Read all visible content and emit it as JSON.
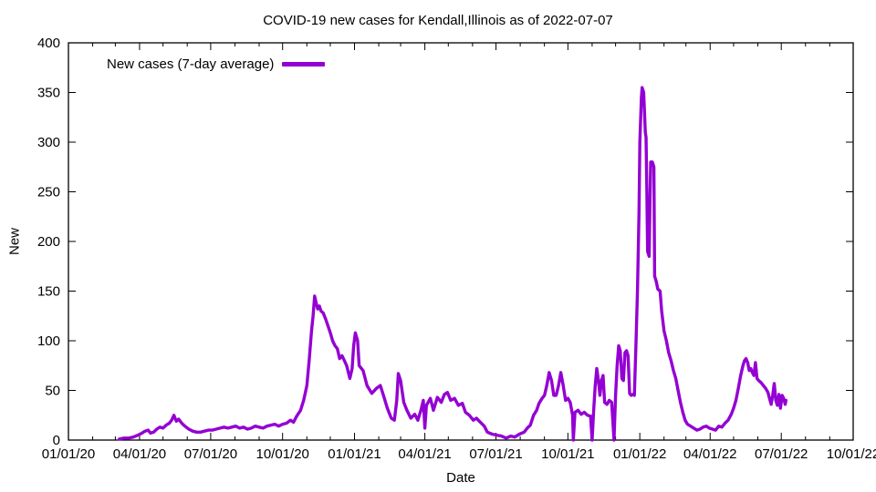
{
  "page": {
    "background": "#ffffff",
    "axis_color": "#000000"
  },
  "chart_data": {
    "type": "line",
    "title": "COVID-19 new cases for Kendall,Illinois as of 2022-07-07",
    "xlabel": "Date",
    "ylabel": "New",
    "grid": false,
    "legend_position": "top-left-inside",
    "ylim": [
      0,
      400
    ],
    "y_ticks": [
      0,
      50,
      100,
      150,
      200,
      250,
      300,
      350,
      400
    ],
    "x_range": [
      "2020-01-01",
      "2022-10-01"
    ],
    "x_minor_tick_unit": "month",
    "x_ticks": [
      {
        "date": "2020-01-01",
        "label": "01/01/20"
      },
      {
        "date": "2020-04-01",
        "label": "04/01/20"
      },
      {
        "date": "2020-07-01",
        "label": "07/01/20"
      },
      {
        "date": "2020-10-01",
        "label": "10/01/20"
      },
      {
        "date": "2021-01-01",
        "label": "01/01/21"
      },
      {
        "date": "2021-04-01",
        "label": "04/01/21"
      },
      {
        "date": "2021-07-01",
        "label": "07/01/21"
      },
      {
        "date": "2021-10-01",
        "label": "10/01/21"
      },
      {
        "date": "2022-01-01",
        "label": "01/01/22"
      },
      {
        "date": "2022-04-01",
        "label": "04/01/22"
      },
      {
        "date": "2022-07-01",
        "label": "07/01/22"
      },
      {
        "date": "2022-10-01",
        "label": "10/01/22"
      }
    ],
    "series": [
      {
        "name": "New cases (7-day average)",
        "color": "#9400d3",
        "points": [
          [
            "2020-03-06",
            1
          ],
          [
            "2020-03-12",
            2
          ],
          [
            "2020-03-18",
            2
          ],
          [
            "2020-03-24",
            3
          ],
          [
            "2020-03-30",
            5
          ],
          [
            "2020-04-04",
            7
          ],
          [
            "2020-04-08",
            9
          ],
          [
            "2020-04-12",
            10
          ],
          [
            "2020-04-15",
            7
          ],
          [
            "2020-04-19",
            8
          ],
          [
            "2020-04-23",
            11
          ],
          [
            "2020-04-27",
            13
          ],
          [
            "2020-05-01",
            12
          ],
          [
            "2020-05-05",
            15
          ],
          [
            "2020-05-09",
            17
          ],
          [
            "2020-05-12",
            20
          ],
          [
            "2020-05-15",
            25
          ],
          [
            "2020-05-18",
            19
          ],
          [
            "2020-05-21",
            21
          ],
          [
            "2020-05-25",
            17
          ],
          [
            "2020-05-29",
            14
          ],
          [
            "2020-06-03",
            11
          ],
          [
            "2020-06-08",
            9
          ],
          [
            "2020-06-13",
            8
          ],
          [
            "2020-06-18",
            8
          ],
          [
            "2020-06-23",
            9
          ],
          [
            "2020-06-28",
            10
          ],
          [
            "2020-07-03",
            10
          ],
          [
            "2020-07-08",
            11
          ],
          [
            "2020-07-13",
            12
          ],
          [
            "2020-07-18",
            13
          ],
          [
            "2020-07-23",
            12
          ],
          [
            "2020-07-28",
            13
          ],
          [
            "2020-08-02",
            14
          ],
          [
            "2020-08-07",
            12
          ],
          [
            "2020-08-12",
            13
          ],
          [
            "2020-08-17",
            11
          ],
          [
            "2020-08-22",
            12
          ],
          [
            "2020-08-27",
            14
          ],
          [
            "2020-09-01",
            13
          ],
          [
            "2020-09-06",
            12
          ],
          [
            "2020-09-11",
            14
          ],
          [
            "2020-09-16",
            15
          ],
          [
            "2020-09-21",
            16
          ],
          [
            "2020-09-26",
            14
          ],
          [
            "2020-10-01",
            16
          ],
          [
            "2020-10-06",
            17
          ],
          [
            "2020-10-11",
            20
          ],
          [
            "2020-10-15",
            18
          ],
          [
            "2020-10-19",
            24
          ],
          [
            "2020-10-24",
            30
          ],
          [
            "2020-10-28",
            40
          ],
          [
            "2020-11-01",
            55
          ],
          [
            "2020-11-04",
            80
          ],
          [
            "2020-11-07",
            110
          ],
          [
            "2020-11-09",
            125
          ],
          [
            "2020-11-11",
            145
          ],
          [
            "2020-11-13",
            138
          ],
          [
            "2020-11-15",
            132
          ],
          [
            "2020-11-17",
            135
          ],
          [
            "2020-11-19",
            130
          ],
          [
            "2020-11-22",
            128
          ],
          [
            "2020-11-25",
            122
          ],
          [
            "2020-11-28",
            115
          ],
          [
            "2020-12-01",
            108
          ],
          [
            "2020-12-04",
            100
          ],
          [
            "2020-12-07",
            95
          ],
          [
            "2020-12-10",
            92
          ],
          [
            "2020-12-13",
            82
          ],
          [
            "2020-12-16",
            85
          ],
          [
            "2020-12-19",
            80
          ],
          [
            "2020-12-22",
            75
          ],
          [
            "2020-12-26",
            62
          ],
          [
            "2020-12-29",
            72
          ],
          [
            "2020-12-31",
            95
          ],
          [
            "2021-01-02",
            108
          ],
          [
            "2021-01-05",
            100
          ],
          [
            "2021-01-07",
            75
          ],
          [
            "2021-01-12",
            70
          ],
          [
            "2021-01-17",
            55
          ],
          [
            "2021-01-23",
            47
          ],
          [
            "2021-01-29",
            52
          ],
          [
            "2021-02-03",
            55
          ],
          [
            "2021-02-07",
            45
          ],
          [
            "2021-02-12",
            32
          ],
          [
            "2021-02-17",
            22
          ],
          [
            "2021-02-21",
            20
          ],
          [
            "2021-02-24",
            40
          ],
          [
            "2021-02-26",
            67
          ],
          [
            "2021-03-01",
            60
          ],
          [
            "2021-03-05",
            38
          ],
          [
            "2021-03-09",
            30
          ],
          [
            "2021-03-14",
            22
          ],
          [
            "2021-03-19",
            26
          ],
          [
            "2021-03-23",
            20
          ],
          [
            "2021-03-27",
            30
          ],
          [
            "2021-03-30",
            40
          ],
          [
            "2021-04-01",
            12
          ],
          [
            "2021-04-03",
            35
          ],
          [
            "2021-04-08",
            42
          ],
          [
            "2021-04-12",
            30
          ],
          [
            "2021-04-17",
            43
          ],
          [
            "2021-04-22",
            38
          ],
          [
            "2021-04-26",
            46
          ],
          [
            "2021-04-30",
            48
          ],
          [
            "2021-05-04",
            40
          ],
          [
            "2021-05-09",
            42
          ],
          [
            "2021-05-14",
            35
          ],
          [
            "2021-05-19",
            37
          ],
          [
            "2021-05-23",
            28
          ],
          [
            "2021-05-28",
            25
          ],
          [
            "2021-06-02",
            20
          ],
          [
            "2021-06-06",
            22
          ],
          [
            "2021-06-11",
            18
          ],
          [
            "2021-06-16",
            14
          ],
          [
            "2021-06-20",
            8
          ],
          [
            "2021-06-26",
            6
          ],
          [
            "2021-07-02",
            5
          ],
          [
            "2021-07-08",
            4
          ],
          [
            "2021-07-14",
            2
          ],
          [
            "2021-07-20",
            4
          ],
          [
            "2021-07-25",
            3
          ],
          [
            "2021-07-31",
            6
          ],
          [
            "2021-08-06",
            8
          ],
          [
            "2021-08-10",
            12
          ],
          [
            "2021-08-14",
            15
          ],
          [
            "2021-08-18",
            25
          ],
          [
            "2021-08-22",
            30
          ],
          [
            "2021-08-25",
            37
          ],
          [
            "2021-08-29",
            42
          ],
          [
            "2021-09-01",
            45
          ],
          [
            "2021-09-04",
            55
          ],
          [
            "2021-09-07",
            68
          ],
          [
            "2021-09-10",
            60
          ],
          [
            "2021-09-13",
            45
          ],
          [
            "2021-09-16",
            45
          ],
          [
            "2021-09-19",
            55
          ],
          [
            "2021-09-22",
            68
          ],
          [
            "2021-09-25",
            55
          ],
          [
            "2021-09-28",
            40
          ],
          [
            "2021-10-01",
            42
          ],
          [
            "2021-10-04",
            38
          ],
          [
            "2021-10-07",
            25
          ],
          [
            "2021-10-08",
            0
          ],
          [
            "2021-10-10",
            28
          ],
          [
            "2021-10-14",
            30
          ],
          [
            "2021-10-18",
            26
          ],
          [
            "2021-10-22",
            28
          ],
          [
            "2021-10-26",
            25
          ],
          [
            "2021-10-30",
            24
          ],
          [
            "2021-11-01",
            0
          ],
          [
            "2021-11-03",
            30
          ],
          [
            "2021-11-05",
            55
          ],
          [
            "2021-11-07",
            72
          ],
          [
            "2021-11-09",
            60
          ],
          [
            "2021-11-11",
            45
          ],
          [
            "2021-11-13",
            60
          ],
          [
            "2021-11-15",
            65
          ],
          [
            "2021-11-17",
            38
          ],
          [
            "2021-11-20",
            36
          ],
          [
            "2021-11-23",
            40
          ],
          [
            "2021-11-26",
            38
          ],
          [
            "2021-11-29",
            0
          ],
          [
            "2021-12-01",
            45
          ],
          [
            "2021-12-03",
            75
          ],
          [
            "2021-12-05",
            95
          ],
          [
            "2021-12-07",
            90
          ],
          [
            "2021-12-09",
            62
          ],
          [
            "2021-12-11",
            60
          ],
          [
            "2021-12-13",
            88
          ],
          [
            "2021-12-15",
            90
          ],
          [
            "2021-12-17",
            85
          ],
          [
            "2021-12-19",
            47
          ],
          [
            "2021-12-21",
            45
          ],
          [
            "2021-12-23",
            46
          ],
          [
            "2021-12-25",
            45
          ],
          [
            "2021-12-27",
            95
          ],
          [
            "2021-12-29",
            150
          ],
          [
            "2021-12-31",
            230
          ],
          [
            "2022-01-01",
            300
          ],
          [
            "2022-01-03",
            345
          ],
          [
            "2022-01-04",
            355
          ],
          [
            "2022-01-06",
            350
          ],
          [
            "2022-01-07",
            330
          ],
          [
            "2022-01-08",
            310
          ],
          [
            "2022-01-09",
            305
          ],
          [
            "2022-01-10",
            250
          ],
          [
            "2022-01-11",
            190
          ],
          [
            "2022-01-13",
            185
          ],
          [
            "2022-01-14",
            240
          ],
          [
            "2022-01-15",
            280
          ],
          [
            "2022-01-17",
            280
          ],
          [
            "2022-01-19",
            275
          ],
          [
            "2022-01-20",
            165
          ],
          [
            "2022-01-22",
            160
          ],
          [
            "2022-01-24",
            152
          ],
          [
            "2022-01-27",
            150
          ],
          [
            "2022-01-29",
            130
          ],
          [
            "2022-02-01",
            110
          ],
          [
            "2022-02-04",
            100
          ],
          [
            "2022-02-07",
            88
          ],
          [
            "2022-02-10",
            80
          ],
          [
            "2022-02-13",
            70
          ],
          [
            "2022-02-16",
            62
          ],
          [
            "2022-02-19",
            50
          ],
          [
            "2022-02-22",
            38
          ],
          [
            "2022-02-25",
            28
          ],
          [
            "2022-02-28",
            20
          ],
          [
            "2022-03-03",
            16
          ],
          [
            "2022-03-07",
            14
          ],
          [
            "2022-03-11",
            12
          ],
          [
            "2022-03-15",
            10
          ],
          [
            "2022-03-19",
            11
          ],
          [
            "2022-03-23",
            13
          ],
          [
            "2022-03-27",
            14
          ],
          [
            "2022-03-31",
            12
          ],
          [
            "2022-04-04",
            11
          ],
          [
            "2022-04-08",
            10
          ],
          [
            "2022-04-12",
            14
          ],
          [
            "2022-04-16",
            13
          ],
          [
            "2022-04-20",
            17
          ],
          [
            "2022-04-24",
            20
          ],
          [
            "2022-04-28",
            26
          ],
          [
            "2022-05-01",
            32
          ],
          [
            "2022-05-04",
            40
          ],
          [
            "2022-05-07",
            52
          ],
          [
            "2022-05-10",
            65
          ],
          [
            "2022-05-13",
            75
          ],
          [
            "2022-05-15",
            80
          ],
          [
            "2022-05-17",
            82
          ],
          [
            "2022-05-19",
            78
          ],
          [
            "2022-05-21",
            70
          ],
          [
            "2022-05-23",
            72
          ],
          [
            "2022-05-25",
            68
          ],
          [
            "2022-05-27",
            65
          ],
          [
            "2022-05-29",
            78
          ],
          [
            "2022-05-31",
            62
          ],
          [
            "2022-06-02",
            60
          ],
          [
            "2022-06-05",
            58
          ],
          [
            "2022-06-08",
            55
          ],
          [
            "2022-06-11",
            52
          ],
          [
            "2022-06-14",
            48
          ],
          [
            "2022-06-16",
            42
          ],
          [
            "2022-06-18",
            36
          ],
          [
            "2022-06-20",
            45
          ],
          [
            "2022-06-22",
            57
          ],
          [
            "2022-06-24",
            40
          ],
          [
            "2022-06-26",
            35
          ],
          [
            "2022-06-28",
            46
          ],
          [
            "2022-06-30",
            32
          ],
          [
            "2022-07-02",
            45
          ],
          [
            "2022-07-04",
            42
          ],
          [
            "2022-07-06",
            36
          ],
          [
            "2022-07-07",
            40
          ]
        ]
      }
    ]
  },
  "legend": {
    "label": "New cases (7-day average)"
  }
}
